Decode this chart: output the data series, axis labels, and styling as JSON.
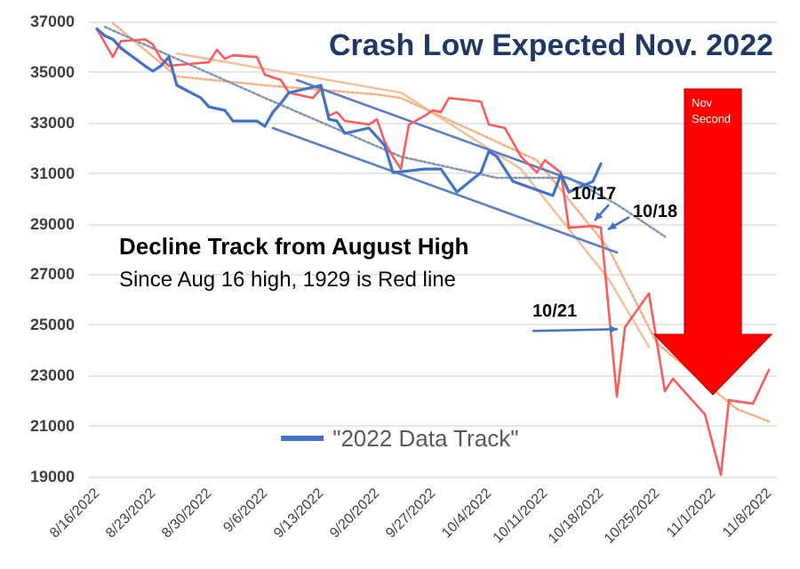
{
  "chart_data": {
    "type": "line",
    "title": "Crash Low Expected Nov. 2022",
    "subtitle": "Decline Track from August High",
    "annotations": [
      "Since Aug 16 high, 1929 is Red line",
      {
        "text": "10/17",
        "x": "2022-10-17",
        "y": 28910
      },
      {
        "text": "10/18",
        "x": "2022-10-18",
        "y": 28840
      },
      {
        "text": "10/21",
        "x": "2022-10-21",
        "y": 24900
      },
      "Nov Second"
    ],
    "xlim": [
      "2022-08-15",
      "2022-11-09"
    ],
    "xticks": [
      {
        "value": "2022-08-16",
        "label": "8/16/2022"
      },
      {
        "value": "2022-08-23",
        "label": "8/23/2022"
      },
      {
        "value": "2022-08-30",
        "label": "8/30/2022"
      },
      {
        "value": "2022-09-06",
        "label": "9/6/2022"
      },
      {
        "value": "2022-09-13",
        "label": "9/13/2022"
      },
      {
        "value": "2022-09-20",
        "label": "9/20/2022"
      },
      {
        "value": "2022-09-27",
        "label": "9/27/2022"
      },
      {
        "value": "2022-10-04",
        "label": "10/4/2022"
      },
      {
        "value": "2022-10-11",
        "label": "10/11/2022"
      },
      {
        "value": "2022-10-18",
        "label": "10/18/2022"
      },
      {
        "value": "2022-10-25",
        "label": "10/25/2022"
      },
      {
        "value": "2022-11-01",
        "label": "11/1/2022"
      },
      {
        "value": "2022-11-08",
        "label": "11/8/2022"
      }
    ],
    "ylim": [
      19000,
      37000
    ],
    "yticks": [
      19000,
      21000,
      23000,
      25000,
      27000,
      29000,
      31000,
      33000,
      35000,
      37000
    ],
    "grid": "y",
    "legend": "bottom",
    "marker": "none",
    "series": [
      {
        "color": "#f4c29a",
        "line_style": "solid",
        "x": [
          "2022-08-26",
          "2022-09-23",
          "2022-10-08",
          "2022-10-19",
          "2022-10-24"
        ],
        "values": [
          35730,
          34180,
          31160,
          26800,
          24130
        ]
      },
      {
        "color": "#f4b183",
        "line_style": "dotted",
        "x": [
          "2022-08-18",
          "2022-08-26",
          "2022-09-06",
          "2022-09-20",
          "2022-09-23",
          "2022-10-10",
          "2022-10-19",
          "2022-10-25",
          "2022-11-04",
          "2022-11-08"
        ],
        "values": [
          36930,
          34820,
          34470,
          34110,
          33970,
          31510,
          28000,
          24270,
          21670,
          21180
        ]
      },
      {
        "color": "#8497b0",
        "line_style": "dotted",
        "x": [
          "2022-08-17",
          "2022-09-06",
          "2022-09-23",
          "2022-10-05",
          "2022-10-14",
          "2022-10-20",
          "2022-10-26"
        ],
        "values": [
          36780,
          33970,
          31650,
          30810,
          30810,
          29760,
          28490
        ]
      },
      {
        "color": "#5b7fc4",
        "line_style": "solid",
        "x": [
          "2022-09-10",
          "2022-10-18"
        ],
        "values": [
          34680,
          30320
        ]
      },
      {
        "color": "#5b7fc4",
        "line_style": "solid",
        "x": [
          "2022-09-07",
          "2022-10-20"
        ],
        "values": [
          32780,
          27860
        ]
      },
      {
        "color": "#ff5b5b",
        "line_style": "solid",
        "x": [
          "2022-08-16",
          "2022-08-18",
          "2022-08-19",
          "2022-08-22",
          "2022-08-23",
          "2022-08-24",
          "2022-08-25",
          "2022-08-30",
          "2022-08-31",
          "2022-09-01",
          "2022-09-02",
          "2022-09-05",
          "2022-09-06",
          "2022-09-08",
          "2022-09-09",
          "2022-09-12",
          "2022-09-13",
          "2022-09-14",
          "2022-09-15",
          "2022-09-16",
          "2022-09-19",
          "2022-09-20",
          "2022-09-21",
          "2022-09-22",
          "2022-09-23",
          "2022-09-24",
          "2022-09-26",
          "2022-09-27",
          "2022-09-28",
          "2022-09-29",
          "2022-10-03",
          "2022-10-04",
          "2022-10-06",
          "2022-10-07",
          "2022-10-08",
          "2022-10-10",
          "2022-10-11",
          "2022-10-13",
          "2022-10-14",
          "2022-10-17",
          "2022-10-18",
          "2022-10-20",
          "2022-10-21",
          "2022-10-24",
          "2022-10-26",
          "2022-10-27",
          "2022-10-31",
          "2022-11-02",
          "2022-11-03",
          "2022-11-06",
          "2022-11-08"
        ],
        "values": [
          36700,
          35590,
          36220,
          36290,
          36080,
          35520,
          35240,
          35380,
          35870,
          35520,
          35660,
          35590,
          34890,
          34680,
          34180,
          33970,
          34330,
          33270,
          33410,
          33060,
          32920,
          33130,
          32220,
          31650,
          31160,
          32920,
          33270,
          33480,
          33410,
          33970,
          33830,
          32920,
          32780,
          32220,
          31650,
          31020,
          31510,
          31020,
          28840,
          28910,
          28840,
          22160,
          24900,
          26240,
          22370,
          22870,
          21460,
          19070,
          22020,
          21880,
          23220
        ]
      },
      {
        "name": "\"2022 Data Track\"",
        "color": "#4472c4",
        "line_style": "solid",
        "x": [
          "2022-08-16",
          "2022-08-17",
          "2022-08-18",
          "2022-08-19",
          "2022-08-22",
          "2022-08-23",
          "2022-08-24",
          "2022-08-25",
          "2022-08-26",
          "2022-08-29",
          "2022-08-30",
          "2022-09-01",
          "2022-09-02",
          "2022-09-05",
          "2022-09-06",
          "2022-09-07",
          "2022-09-08",
          "2022-09-09",
          "2022-09-13",
          "2022-09-14",
          "2022-09-15",
          "2022-09-16",
          "2022-09-19",
          "2022-09-20",
          "2022-09-21",
          "2022-09-22",
          "2022-09-26",
          "2022-09-28",
          "2022-09-30",
          "2022-10-03",
          "2022-10-04",
          "2022-10-05",
          "2022-10-07",
          "2022-10-12",
          "2022-10-13",
          "2022-10-14",
          "2022-10-17",
          "2022-10-18"
        ],
        "values": [
          36700,
          36430,
          36290,
          35940,
          35240,
          35030,
          35240,
          35590,
          34470,
          33970,
          33620,
          33480,
          33060,
          33060,
          32850,
          33410,
          33760,
          34180,
          34470,
          33130,
          33060,
          32570,
          32780,
          32430,
          32080,
          31020,
          31160,
          31160,
          30250,
          31020,
          31860,
          31650,
          30670,
          30110,
          30950,
          30250,
          30670,
          31370
        ]
      }
    ]
  }
}
